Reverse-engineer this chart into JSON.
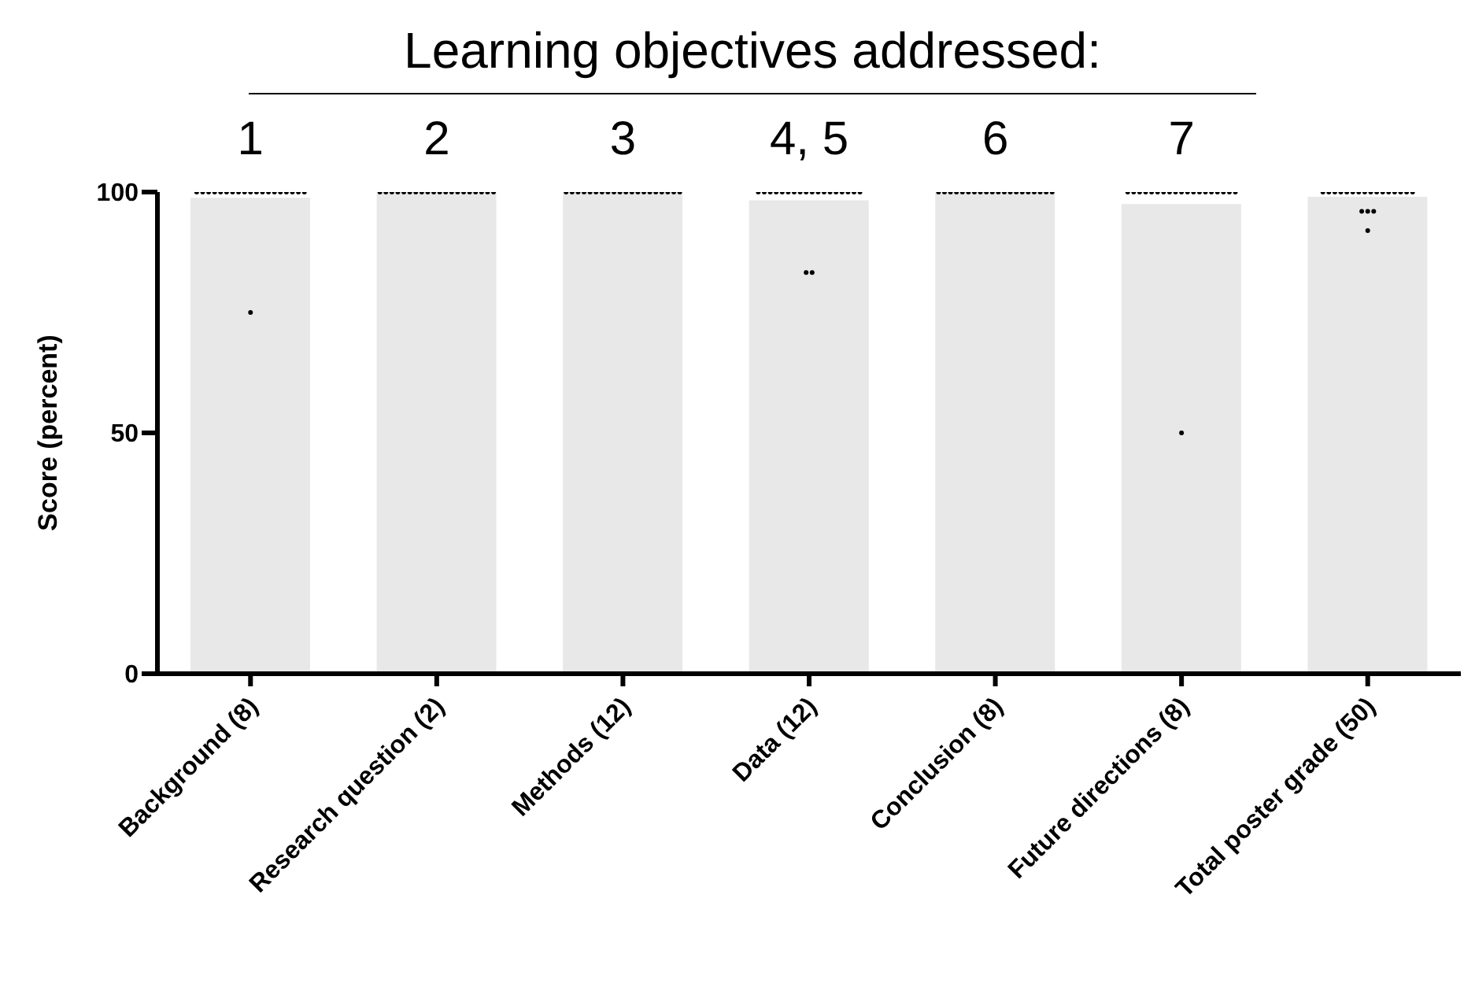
{
  "chart_data": {
    "type": "bar",
    "title": "Learning objectives addressed:",
    "ylabel": "Score (percent)",
    "categories": [
      "Background (8)",
      "Research question (2)",
      "Methods (12)",
      "Data (12)",
      "Conclusion (8)",
      "Future directions (8)",
      "Total poster grade (50)"
    ],
    "annotations": [
      "1",
      "2",
      "3",
      "4, 5",
      "6",
      "7"
    ],
    "ylim": [
      0,
      100
    ],
    "yticks": [
      0,
      50,
      100
    ],
    "series": [
      {
        "type": "bar",
        "color": "#e8e8e8",
        "values": [
          98.8,
          100,
          100,
          98.3,
          100,
          97.5,
          99
        ]
      },
      {
        "type": "scatter",
        "color": "#000000",
        "marker": "circle",
        "x": [
          "Background (8)",
          "Background (8)",
          "Background (8)",
          "Background (8)",
          "Background (8)",
          "Background (8)",
          "Background (8)",
          "Background (8)",
          "Background (8)",
          "Background (8)",
          "Background (8)",
          "Background (8)",
          "Background (8)",
          "Background (8)",
          "Background (8)",
          "Background (8)",
          "Background (8)",
          "Background (8)",
          "Background (8)",
          "Background (8)",
          "Research question (2)",
          "Research question (2)",
          "Research question (2)",
          "Research question (2)",
          "Research question (2)",
          "Research question (2)",
          "Research question (2)",
          "Research question (2)",
          "Research question (2)",
          "Research question (2)",
          "Research question (2)",
          "Research question (2)",
          "Research question (2)",
          "Research question (2)",
          "Research question (2)",
          "Research question (2)",
          "Research question (2)",
          "Research question (2)",
          "Research question (2)",
          "Research question (2)",
          "Methods (12)",
          "Methods (12)",
          "Methods (12)",
          "Methods (12)",
          "Methods (12)",
          "Methods (12)",
          "Methods (12)",
          "Methods (12)",
          "Methods (12)",
          "Methods (12)",
          "Methods (12)",
          "Methods (12)",
          "Methods (12)",
          "Methods (12)",
          "Methods (12)",
          "Methods (12)",
          "Methods (12)",
          "Methods (12)",
          "Methods (12)",
          "Methods (12)",
          "Data (12)",
          "Data (12)",
          "Data (12)",
          "Data (12)",
          "Data (12)",
          "Data (12)",
          "Data (12)",
          "Data (12)",
          "Data (12)",
          "Data (12)",
          "Data (12)",
          "Data (12)",
          "Data (12)",
          "Data (12)",
          "Data (12)",
          "Data (12)",
          "Data (12)",
          "Data (12)",
          "Data (12)",
          "Data (12)",
          "Conclusion (8)",
          "Conclusion (8)",
          "Conclusion (8)",
          "Conclusion (8)",
          "Conclusion (8)",
          "Conclusion (8)",
          "Conclusion (8)",
          "Conclusion (8)",
          "Conclusion (8)",
          "Conclusion (8)",
          "Conclusion (8)",
          "Conclusion (8)",
          "Conclusion (8)",
          "Conclusion (8)",
          "Conclusion (8)",
          "Conclusion (8)",
          "Conclusion (8)",
          "Conclusion (8)",
          "Conclusion (8)",
          "Conclusion (8)",
          "Future directions (8)",
          "Future directions (8)",
          "Future directions (8)",
          "Future directions (8)",
          "Future directions (8)",
          "Future directions (8)",
          "Future directions (8)",
          "Future directions (8)",
          "Future directions (8)",
          "Future directions (8)",
          "Future directions (8)",
          "Future directions (8)",
          "Future directions (8)",
          "Future directions (8)",
          "Future directions (8)",
          "Future directions (8)",
          "Future directions (8)",
          "Future directions (8)",
          "Future directions (8)",
          "Future directions (8)",
          "Total poster grade (50)",
          "Total poster grade (50)",
          "Total poster grade (50)",
          "Total poster grade (50)",
          "Total poster grade (50)",
          "Total poster grade (50)",
          "Total poster grade (50)",
          "Total poster grade (50)",
          "Total poster grade (50)",
          "Total poster grade (50)",
          "Total poster grade (50)",
          "Total poster grade (50)",
          "Total poster grade (50)",
          "Total poster grade (50)",
          "Total poster grade (50)",
          "Total poster grade (50)",
          "Total poster grade (50)",
          "Total poster grade (50)",
          "Total poster grade (50)",
          "Total poster grade (50)"
        ],
        "values": [
          100,
          100,
          100,
          100,
          100,
          100,
          100,
          100,
          100,
          100,
          100,
          100,
          100,
          100,
          100,
          100,
          100,
          100,
          100,
          75,
          100,
          100,
          100,
          100,
          100,
          100,
          100,
          100,
          100,
          100,
          100,
          100,
          100,
          100,
          100,
          100,
          100,
          100,
          100,
          100,
          100,
          100,
          100,
          100,
          100,
          100,
          100,
          100,
          100,
          100,
          100,
          100,
          100,
          100,
          100,
          100,
          100,
          100,
          100,
          100,
          100,
          100,
          100,
          100,
          100,
          100,
          100,
          100,
          100,
          100,
          100,
          100,
          100,
          100,
          100,
          100,
          100,
          100,
          83.3,
          83.3,
          100,
          100,
          100,
          100,
          100,
          100,
          100,
          100,
          100,
          100,
          100,
          100,
          100,
          100,
          100,
          100,
          100,
          100,
          100,
          100,
          100,
          100,
          100,
          100,
          100,
          100,
          100,
          100,
          100,
          100,
          100,
          100,
          100,
          100,
          100,
          100,
          100,
          100,
          100,
          50,
          100,
          100,
          100,
          100,
          100,
          100,
          100,
          100,
          100,
          100,
          100,
          100,
          100,
          100,
          100,
          100,
          96,
          96,
          96,
          92
        ]
      }
    ]
  }
}
